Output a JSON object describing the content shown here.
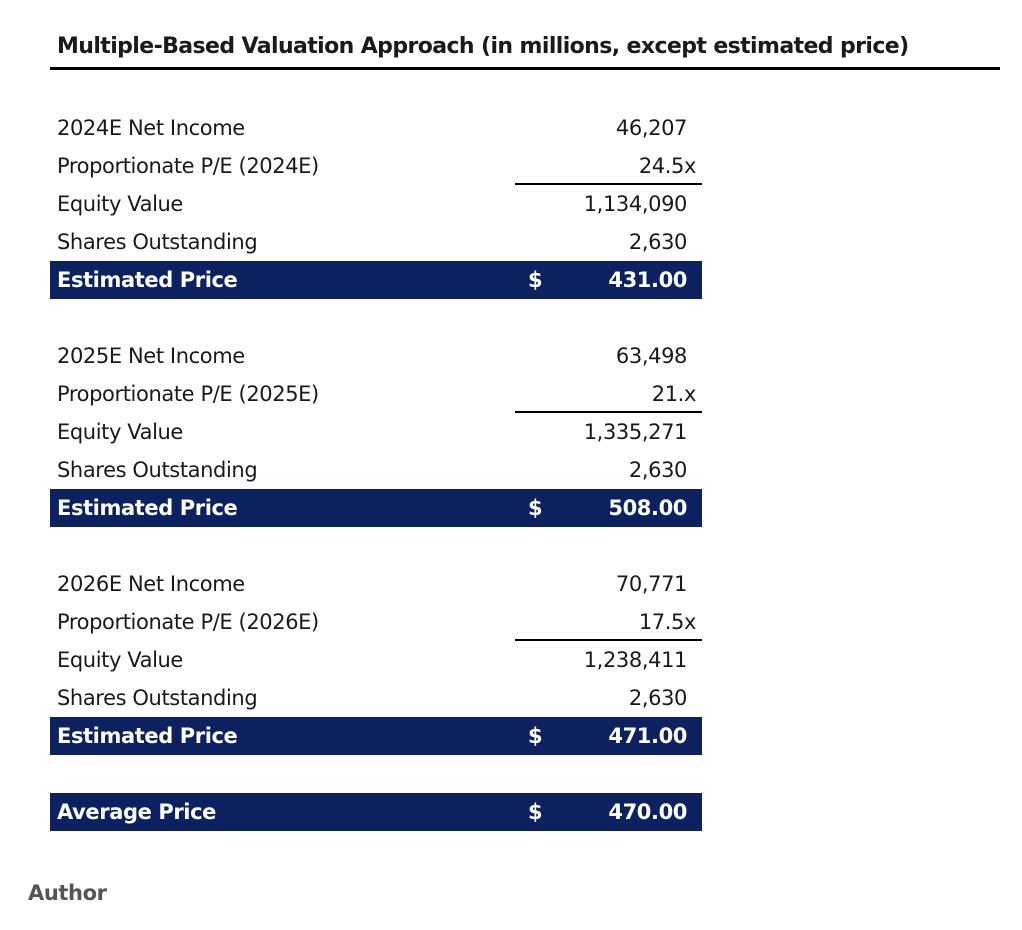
{
  "title": "Multiple-Based Valuation Approach (in millions, except estimated price)",
  "blocks": [
    {
      "net_income_label": "2024E Net Income",
      "net_income_value": "46,207",
      "pe_label": "Proportionate P/E (2024E)",
      "pe_value": "24.5x",
      "equity_label": "Equity Value",
      "equity_value": "1,134,090",
      "shares_label": "Shares Outstanding",
      "shares_value": "2,630",
      "price_label": "Estimated Price",
      "price_currency": "$",
      "price_value": "431.00"
    },
    {
      "net_income_label": "2025E Net Income",
      "net_income_value": "63,498",
      "pe_label": "Proportionate P/E (2025E)",
      "pe_value": "21.x",
      "equity_label": "Equity Value",
      "equity_value": "1,335,271",
      "shares_label": "Shares Outstanding",
      "shares_value": "2,630",
      "price_label": "Estimated Price",
      "price_currency": "$",
      "price_value": "508.00"
    },
    {
      "net_income_label": "2026E Net Income",
      "net_income_value": "70,771",
      "pe_label": "Proportionate P/E (2026E)",
      "pe_value": "17.5x",
      "equity_label": "Equity Value",
      "equity_value": "1,238,411",
      "shares_label": "Shares Outstanding",
      "shares_value": "2,630",
      "price_label": "Estimated Price",
      "price_currency": "$",
      "price_value": "471.00"
    }
  ],
  "average": {
    "label": "Average Price",
    "currency": "$",
    "value": "470.00"
  },
  "footer": {
    "credit": "Author"
  },
  "colors": {
    "highlight_bg": "#0b2160",
    "highlight_text": "#ffffff"
  }
}
